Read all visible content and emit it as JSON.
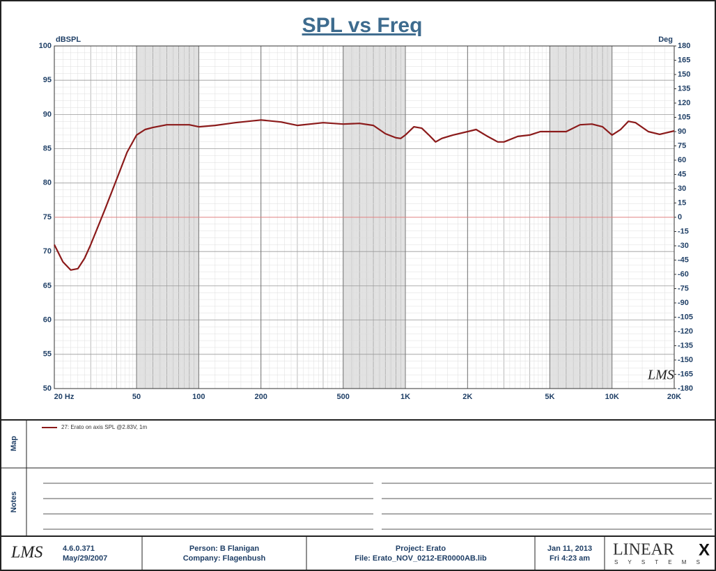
{
  "chart_data": {
    "type": "line",
    "title": "SPL vs Freq",
    "ylabel": "dBSPL",
    "y2label": "Deg",
    "x": [
      20,
      22,
      24,
      26,
      28,
      30,
      35,
      40,
      45,
      50,
      55,
      60,
      70,
      80,
      90,
      100,
      120,
      150,
      200,
      250,
      300,
      400,
      500,
      600,
      700,
      800,
      900,
      950,
      1000,
      1100,
      1200,
      1300,
      1400,
      1500,
      1700,
      2000,
      2200,
      2500,
      2800,
      3000,
      3500,
      4000,
      4500,
      5000,
      6000,
      7000,
      8000,
      9000,
      10000,
      11000,
      12000,
      13000,
      15000,
      17000,
      20000
    ],
    "series": [
      {
        "name": "27: Erato on axis SPL @2.83V, 1m",
        "color": "#8b1a1a",
        "values": [
          71,
          68.5,
          67.3,
          67.5,
          69,
          71,
          76,
          80.5,
          84.5,
          87,
          87.8,
          88.1,
          88.5,
          88.5,
          88.5,
          88.2,
          88.4,
          88.8,
          89.2,
          88.9,
          88.4,
          88.8,
          88.6,
          88.7,
          88.4,
          87.2,
          86.6,
          86.5,
          87,
          88.2,
          88,
          87,
          86,
          86.5,
          87,
          87.5,
          87.8,
          86.8,
          86,
          86,
          86.8,
          87,
          87.5,
          87.5,
          87.5,
          88.5,
          88.6,
          88.2,
          87,
          87.8,
          89,
          88.8,
          87.5,
          87.1,
          87.6
        ]
      }
    ],
    "xscale": "log",
    "xlim": [
      20,
      20000
    ],
    "xticks": [
      {
        "value": 20,
        "label": "20  Hz"
      },
      50,
      100,
      200,
      500,
      {
        "value": 1000,
        "label": "1K"
      },
      {
        "value": 2000,
        "label": "2K"
      },
      {
        "value": 5000,
        "label": "5K"
      },
      {
        "value": 10000,
        "label": "10K"
      },
      {
        "value": 20000,
        "label": "20K"
      }
    ],
    "ylim": [
      50,
      100
    ],
    "yticks": [
      50,
      55,
      60,
      65,
      70,
      75,
      80,
      85,
      90,
      95,
      100
    ],
    "y2lim": [
      -180,
      180
    ],
    "y2ticks": [
      -180,
      -165,
      -150,
      -135,
      -120,
      -105,
      -90,
      -75,
      -60,
      -45,
      -30,
      -15,
      0,
      15,
      30,
      45,
      60,
      75,
      90,
      105,
      120,
      135,
      150,
      165,
      180
    ],
    "hline": 75,
    "hline_color": "#e08080",
    "grid": true,
    "watermark": "LMS"
  },
  "map_label": "Map",
  "notes_label": "Notes",
  "footer": {
    "logo": "LMS",
    "version": "4.6.0.371",
    "date_built": "May/29/2007",
    "person": "Person: B Flanigan",
    "company": "Company: Flagenbush",
    "project": "Project: Erato",
    "file": "File: Erato_NOV_0212-ER0000AB.lib",
    "date": "Jan 11, 2013",
    "time": "Fri 4:23 am",
    "brand": "LINEAR",
    "brand_x": "X",
    "brand_sub": "S Y S T E M S"
  }
}
